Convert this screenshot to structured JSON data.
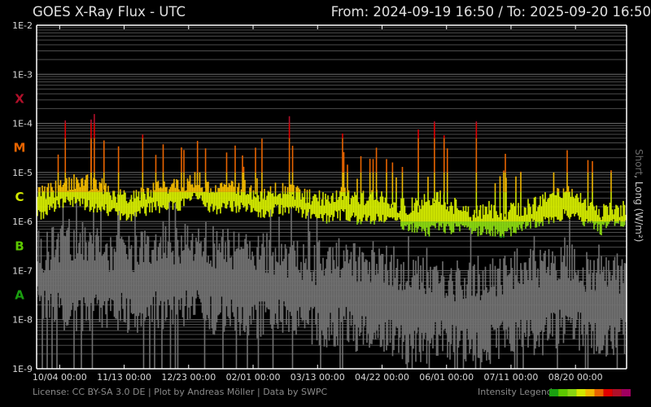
{
  "header": {
    "title": "GOES X-Ray Flux - UTC",
    "range": "From: 2024-09-19 16:50  /  To: 2025-09-20 16:50"
  },
  "footer": {
    "license": "License: CC BY-SA 3.0 DE | Plot by Andreas Möller | Data by SWPC",
    "legend_label": "Intensity Legend",
    "legend_colors": [
      "#1aa010",
      "#5cc800",
      "#88d610",
      "#d2e800",
      "#f0b800",
      "#e86400",
      "#e00000",
      "#b0102a",
      "#a00060"
    ]
  },
  "chart_data": {
    "type": "line",
    "title": "GOES X-Ray Flux - UTC",
    "ylabel_short": "Short",
    "ylabel_long": ", Long (W/m²)",
    "yscale": "log",
    "ylim": [
      1e-09,
      0.01
    ],
    "xlim": [
      "2024-09-19 16:50",
      "2025-09-20 16:50"
    ],
    "grid": true,
    "y_ticks": [
      {
        "value": 0.01,
        "label": "1E-2"
      },
      {
        "value": 0.001,
        "label": "1E-3"
      },
      {
        "value": 0.0001,
        "label": "1E-4"
      },
      {
        "value": 1e-05,
        "label": "1E-5"
      },
      {
        "value": 1e-06,
        "label": "1E-6"
      },
      {
        "value": 1e-07,
        "label": "1E-7"
      },
      {
        "value": 1e-08,
        "label": "1E-8"
      },
      {
        "value": 1e-09,
        "label": "1E-9"
      }
    ],
    "flare_classes": [
      {
        "label": "X",
        "value": 0.000316,
        "color": "#b0102a"
      },
      {
        "label": "M",
        "value": 3.16e-05,
        "color": "#e86400"
      },
      {
        "label": "C",
        "value": 3.16e-06,
        "color": "#d2e800"
      },
      {
        "label": "B",
        "value": 3.16e-07,
        "color": "#5cc800"
      },
      {
        "label": "A",
        "value": 3.16e-08,
        "color": "#1aa010"
      }
    ],
    "x_ticks": [
      {
        "date": "2024-10-04 00:00",
        "label": "10/04 00:00"
      },
      {
        "date": "2024-11-13 00:00",
        "label": "11/13 00:00"
      },
      {
        "date": "2024-12-23 00:00",
        "label": "12/23 00:00"
      },
      {
        "date": "2025-02-01 00:00",
        "label": "02/01 00:00"
      },
      {
        "date": "2025-03-13 00:00",
        "label": "03/13 00:00"
      },
      {
        "date": "2025-04-22 00:00",
        "label": "04/22 00:00"
      },
      {
        "date": "2025-06-01 00:00",
        "label": "06/01 00:00"
      },
      {
        "date": "2025-07-11 00:00",
        "label": "07/11 00:00"
      },
      {
        "date": "2025-08-20 00:00",
        "label": "08/20 00:00"
      }
    ],
    "dates": [
      "2024-09-19",
      "2024-09-29",
      "2024-10-09",
      "2024-10-19",
      "2024-10-29",
      "2024-11-08",
      "2024-11-18",
      "2024-11-28",
      "2024-12-08",
      "2024-12-18",
      "2024-12-28",
      "2025-01-07",
      "2025-01-17",
      "2025-01-27",
      "2025-02-06",
      "2025-02-16",
      "2025-02-26",
      "2025-03-08",
      "2025-03-18",
      "2025-03-28",
      "2025-04-07",
      "2025-04-17",
      "2025-04-27",
      "2025-05-07",
      "2025-05-17",
      "2025-05-27",
      "2025-06-06",
      "2025-06-16",
      "2025-06-26",
      "2025-07-06",
      "2025-07-16",
      "2025-07-26",
      "2025-08-05",
      "2025-08-15",
      "2025-08-25",
      "2025-09-04",
      "2025-09-14"
    ],
    "series": [
      {
        "name": "Long",
        "color": "by intensity",
        "low": [
          1.26e-06,
          1.84e-06,
          2.7e-06,
          2.23e-06,
          1.84e-06,
          1.41e-06,
          1.26e-06,
          1.84e-06,
          2.07e-06,
          2.23e-06,
          3.3e-06,
          1.64e-06,
          2.07e-06,
          1.84e-06,
          1.41e-06,
          1.84e-06,
          1.64e-06,
          1.41e-06,
          1.12e-06,
          1.41e-06,
          1.12e-06,
          1.12e-06,
          9.6e-07,
          8.6e-07,
          5.9e-07,
          7.7e-07,
          7.1e-07,
          5.9e-07,
          6.6e-07,
          5.9e-07,
          7.7e-07,
          9.6e-07,
          1.12e-06,
          1.52e-06,
          1.04e-06,
          6.6e-07,
          9.6e-07
        ],
        "high": [
          3.3e-06,
          4e-06,
          5.8e-06,
          5.8e-06,
          4.8e-06,
          3.3e-06,
          2.7e-06,
          4e-06,
          4.4e-06,
          5.2e-06,
          7e-06,
          3.3e-06,
          4.8e-06,
          4e-06,
          3.3e-06,
          4e-06,
          3.5e-06,
          3e-06,
          2.4e-06,
          3.3e-06,
          2.7e-06,
          3.3e-06,
          2.23e-06,
          1.84e-06,
          2.23e-06,
          2.7e-06,
          1.84e-06,
          1.41e-06,
          1.64e-06,
          1.41e-06,
          1.64e-06,
          2.07e-06,
          3.3e-06,
          4e-06,
          2.23e-06,
          1.41e-06,
          1.64e-06
        ]
      },
      {
        "name": "Short",
        "color": "#707070",
        "low": [
          2e-08,
          1.5e-08,
          1.5e-08,
          1.2e-08,
          1.5e-08,
          1.5e-08,
          1.2e-08,
          1.5e-08,
          1.5e-08,
          1.5e-08,
          2e-08,
          1.2e-08,
          1.2e-08,
          1e-08,
          1e-08,
          1.2e-08,
          1e-08,
          8e-09,
          6e-09,
          8e-09,
          5e-09,
          6e-09,
          4e-09,
          3e-09,
          3e-09,
          4e-09,
          3e-09,
          3e-09,
          3e-09,
          4e-09,
          5e-09,
          4e-09,
          6e-09,
          8e-09,
          5e-09,
          4e-09,
          5e-09
        ],
        "high": [
          1.5e-07,
          2e-07,
          3e-07,
          2.5e-07,
          2e-07,
          1.5e-07,
          1.5e-07,
          2e-07,
          2.5e-07,
          2e-07,
          3e-07,
          2e-07,
          2e-07,
          1.5e-07,
          1.5e-07,
          1.5e-07,
          1.2e-07,
          1e-07,
          8e-08,
          1.2e-07,
          8e-08,
          1e-07,
          8e-08,
          5e-08,
          5e-08,
          6e-08,
          4e-08,
          4e-08,
          4e-08,
          6e-08,
          8e-08,
          6e-08,
          1e-07,
          1.2e-07,
          6e-08,
          5e-08,
          6e-08
        ]
      }
    ],
    "flares": [
      {
        "date": "2024-10-07",
        "peak": 0.000115
      },
      {
        "date": "2024-10-23",
        "peak": 0.00012
      },
      {
        "date": "2024-10-25",
        "peak": 0.000155
      },
      {
        "date": "2024-10-31",
        "peak": 4.5e-05
      },
      {
        "date": "2024-11-09",
        "peak": 3.4e-05
      },
      {
        "date": "2024-11-24",
        "peak": 5.9e-05
      },
      {
        "date": "2024-12-28",
        "peak": 4.4e-05
      },
      {
        "date": "2025-01-02",
        "peak": 3.1e-05
      },
      {
        "date": "2025-02-02",
        "peak": 3.2e-05
      },
      {
        "date": "2025-02-06",
        "peak": 4.9e-05
      },
      {
        "date": "2025-02-23",
        "peak": 0.00014
      },
      {
        "date": "2025-02-25",
        "peak": 3.5e-05
      },
      {
        "date": "2025-03-28",
        "peak": 6.2e-05
      },
      {
        "date": "2025-04-14",
        "peak": 1.9e-05
      },
      {
        "date": "2025-04-18",
        "peak": 3.2e-05
      },
      {
        "date": "2025-04-28",
        "peak": 1.6e-05
      },
      {
        "date": "2025-05-14",
        "peak": 7.5e-05
      },
      {
        "date": "2025-05-24",
        "peak": 0.00011
      },
      {
        "date": "2025-05-30",
        "peak": 5.7e-05
      },
      {
        "date": "2025-06-01",
        "peak": 3.1e-05
      },
      {
        "date": "2025-06-19",
        "peak": 0.00011
      },
      {
        "date": "2025-07-07",
        "peak": 2.4e-05
      },
      {
        "date": "2025-08-06",
        "peak": 1e-05
      },
      {
        "date": "2025-08-30",
        "peak": 1.7e-05
      }
    ]
  }
}
